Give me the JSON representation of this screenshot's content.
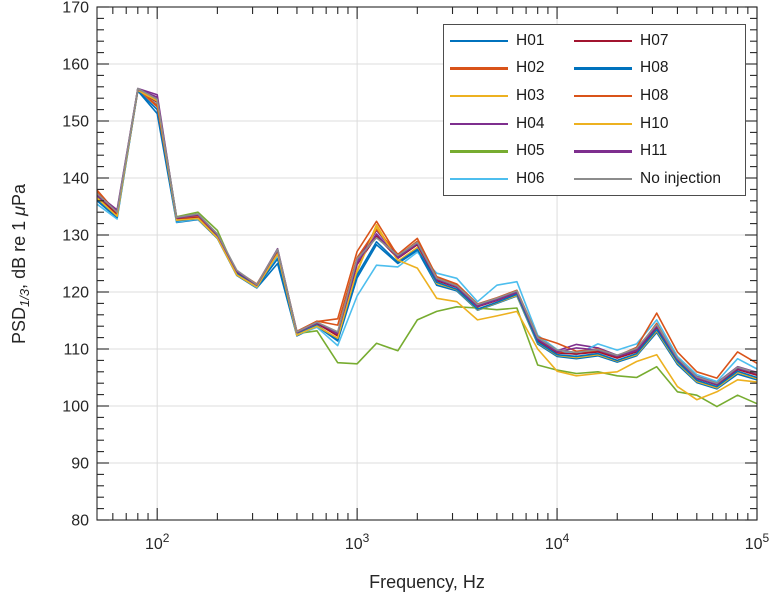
{
  "figure": {
    "background": "#ffffff",
    "axis_color": "#262626",
    "grid_color": "#dcdcdc",
    "xlabel": "Frequency, Hz",
    "ylabel_parts": {
      "main": "PSD",
      "sub": "1/3",
      "rest": ", dB re 1 ",
      "mu": "μ",
      "unit": "Pa"
    }
  },
  "chart_data": {
    "type": "line",
    "title": "",
    "xlabel": "Frequency, Hz",
    "ylabel": "PSD_{1/3}, dB re 1 μPa",
    "x_scale": "log",
    "xlim": [
      50,
      100000
    ],
    "ylim": [
      80,
      170
    ],
    "grid": true,
    "y_tick_step": 10,
    "y_minor_tick_step": 2,
    "y_ticks": [
      80,
      90,
      100,
      110,
      120,
      130,
      140,
      150,
      160,
      170
    ],
    "x_major_ticks": [
      100,
      1000,
      10000,
      100000
    ],
    "x_tick_labels": [
      {
        "base": "10",
        "exp": "2"
      },
      {
        "base": "10",
        "exp": "3"
      },
      {
        "base": "10",
        "exp": "4"
      },
      {
        "base": "10",
        "exp": "5"
      }
    ],
    "legend_location": "northeast",
    "legend_columns": 2,
    "frequencies_hz": [
      50,
      63,
      80,
      100,
      125,
      160,
      200,
      250,
      315,
      400,
      500,
      630,
      800,
      1000,
      1250,
      1600,
      2000,
      2500,
      3150,
      4000,
      5000,
      6300,
      8000,
      10000,
      12500,
      16000,
      20000,
      25000,
      31500,
      40000,
      50000,
      63000,
      80000,
      100000
    ],
    "series": [
      {
        "name": "H01",
        "color": "#0072BD",
        "values": [
          136.0,
          133.0,
          155.3,
          151.3,
          132.2,
          132.7,
          129.4,
          122.9,
          120.7,
          125.0,
          112.3,
          114.0,
          111.4,
          122.5,
          128.3,
          125.0,
          127.3,
          121.2,
          120.2,
          116.8,
          118.0,
          119.3,
          110.9,
          108.7,
          108.3,
          108.8,
          107.7,
          108.8,
          112.9,
          107.3,
          104.1,
          103.0,
          105.6,
          104.6
        ]
      },
      {
        "name": "H02",
        "color": "#D95319",
        "values": [
          137.9,
          133.8,
          155.6,
          152.5,
          132.8,
          133.0,
          129.8,
          123.4,
          121.1,
          127.2,
          112.8,
          114.8,
          115.3,
          127.1,
          132.4,
          126.3,
          128.9,
          122.5,
          121.2,
          117.6,
          118.7,
          120.0,
          111.8,
          109.6,
          109.3,
          109.7,
          108.6,
          109.8,
          114.5,
          108.3,
          105.0,
          103.9,
          106.7,
          105.6
        ]
      },
      {
        "name": "H03",
        "color": "#EDB120",
        "values": [
          136.4,
          133.2,
          155.4,
          153.7,
          132.4,
          132.8,
          129.5,
          123.0,
          120.8,
          126.6,
          112.4,
          114.1,
          111.8,
          123.5,
          131.8,
          125.4,
          127.8,
          121.5,
          120.4,
          116.9,
          118.1,
          119.4,
          111.1,
          108.9,
          108.5,
          109.0,
          107.9,
          109.0,
          113.2,
          107.6,
          104.3,
          103.2,
          105.9,
          104.8
        ]
      },
      {
        "name": "H04",
        "color": "#7E2F8E",
        "values": [
          137.2,
          134.4,
          155.7,
          154.6,
          133.0,
          133.4,
          130.1,
          123.6,
          121.3,
          127.6,
          113.0,
          114.6,
          112.6,
          125.5,
          130.8,
          126.2,
          128.6,
          122.3,
          121.0,
          117.7,
          118.8,
          120.1,
          111.9,
          109.7,
          110.8,
          110.2,
          108.9,
          110.0,
          114.1,
          108.5,
          105.2,
          104.1,
          106.9,
          105.9
        ]
      },
      {
        "name": "H05",
        "color": "#77AC30",
        "values": [
          136.6,
          133.4,
          155.5,
          153.9,
          133.2,
          134.0,
          130.8,
          123.2,
          120.9,
          126.8,
          112.7,
          113.2,
          107.6,
          107.4,
          111.0,
          109.7,
          115.1,
          116.6,
          117.4,
          117.2,
          116.9,
          117.2,
          107.2,
          106.3,
          105.7,
          106.0,
          105.3,
          105.0,
          106.9,
          102.5,
          101.9,
          99.9,
          101.9,
          100.4
        ]
      },
      {
        "name": "H06",
        "color": "#4DBEEE",
        "values": [
          135.4,
          132.8,
          155.4,
          152.9,
          132.3,
          132.8,
          129.6,
          123.1,
          120.8,
          126.2,
          112.5,
          113.8,
          110.6,
          119.3,
          124.7,
          124.4,
          127.0,
          123.3,
          122.4,
          118.3,
          121.2,
          121.8,
          112.4,
          109.9,
          109.0,
          110.9,
          109.8,
          110.9,
          115.1,
          108.7,
          105.5,
          104.3,
          108.3,
          106.5
        ]
      },
      {
        "name": "H07",
        "color": "#A2142F",
        "values": [
          137.0,
          133.6,
          155.5,
          153.3,
          132.9,
          133.2,
          129.9,
          123.5,
          121.2,
          127.1,
          112.9,
          114.5,
          112.3,
          124.8,
          129.8,
          125.9,
          128.3,
          122.0,
          120.8,
          117.4,
          118.5,
          119.8,
          111.5,
          109.3,
          109.1,
          109.5,
          108.4,
          109.5,
          113.8,
          108.0,
          104.8,
          103.7,
          106.4,
          105.4
        ]
      },
      {
        "name": "H08",
        "color": "#0072BD",
        "values": [
          136.2,
          133.1,
          155.3,
          152.0,
          132.5,
          132.9,
          129.6,
          123.2,
          120.9,
          125.8,
          112.6,
          114.2,
          111.6,
          123.0,
          128.8,
          125.2,
          127.5,
          121.7,
          120.5,
          117.0,
          118.2,
          119.6,
          111.2,
          109.0,
          108.7,
          109.2,
          108.0,
          109.2,
          113.4,
          107.8,
          104.5,
          103.4,
          106.1,
          105.0
        ]
      },
      {
        "name": "H08",
        "color": "#D95319",
        "values": [
          137.5,
          133.9,
          155.6,
          152.7,
          133.0,
          133.3,
          130.0,
          123.7,
          121.4,
          127.3,
          113.1,
          114.9,
          114.2,
          126.0,
          131.0,
          126.6,
          129.4,
          122.7,
          121.4,
          117.9,
          119.0,
          120.3,
          112.1,
          111.0,
          109.6,
          110.0,
          108.8,
          110.3,
          116.3,
          109.5,
          106.0,
          104.9,
          109.5,
          107.5
        ]
      },
      {
        "name": "H10",
        "color": "#EDB120",
        "values": [
          136.5,
          133.3,
          155.4,
          153.5,
          132.6,
          132.9,
          129.5,
          123.0,
          120.9,
          126.7,
          112.5,
          114.0,
          111.9,
          123.8,
          131.4,
          125.6,
          124.2,
          118.9,
          118.3,
          115.1,
          115.8,
          116.6,
          110.0,
          106.1,
          105.3,
          105.7,
          106.0,
          107.8,
          109.0,
          103.4,
          101.1,
          102.5,
          104.6,
          104.2
        ]
      },
      {
        "name": "H11",
        "color": "#7E2F8E",
        "values": [
          136.9,
          134.2,
          155.6,
          154.2,
          133.0,
          133.5,
          130.0,
          123.6,
          121.2,
          127.4,
          112.9,
          114.6,
          112.8,
          125.0,
          130.2,
          126.0,
          128.5,
          122.2,
          120.9,
          117.5,
          118.6,
          119.9,
          111.7,
          109.5,
          110.2,
          109.8,
          108.7,
          109.7,
          114.0,
          108.2,
          104.9,
          103.8,
          106.6,
          105.7
        ]
      },
      {
        "name": "No injection",
        "color": "#8C8C8C",
        "values": [
          137.3,
          134.0,
          155.7,
          153.8,
          133.1,
          133.7,
          130.2,
          123.8,
          121.3,
          127.5,
          113.0,
          114.7,
          113.0,
          125.8,
          129.5,
          126.4,
          128.7,
          122.4,
          121.1,
          117.8,
          118.9,
          120.2,
          112.0,
          109.8,
          109.4,
          109.9,
          108.9,
          110.1,
          114.3,
          108.4,
          105.1,
          104.0,
          106.8,
          105.8
        ]
      }
    ]
  }
}
